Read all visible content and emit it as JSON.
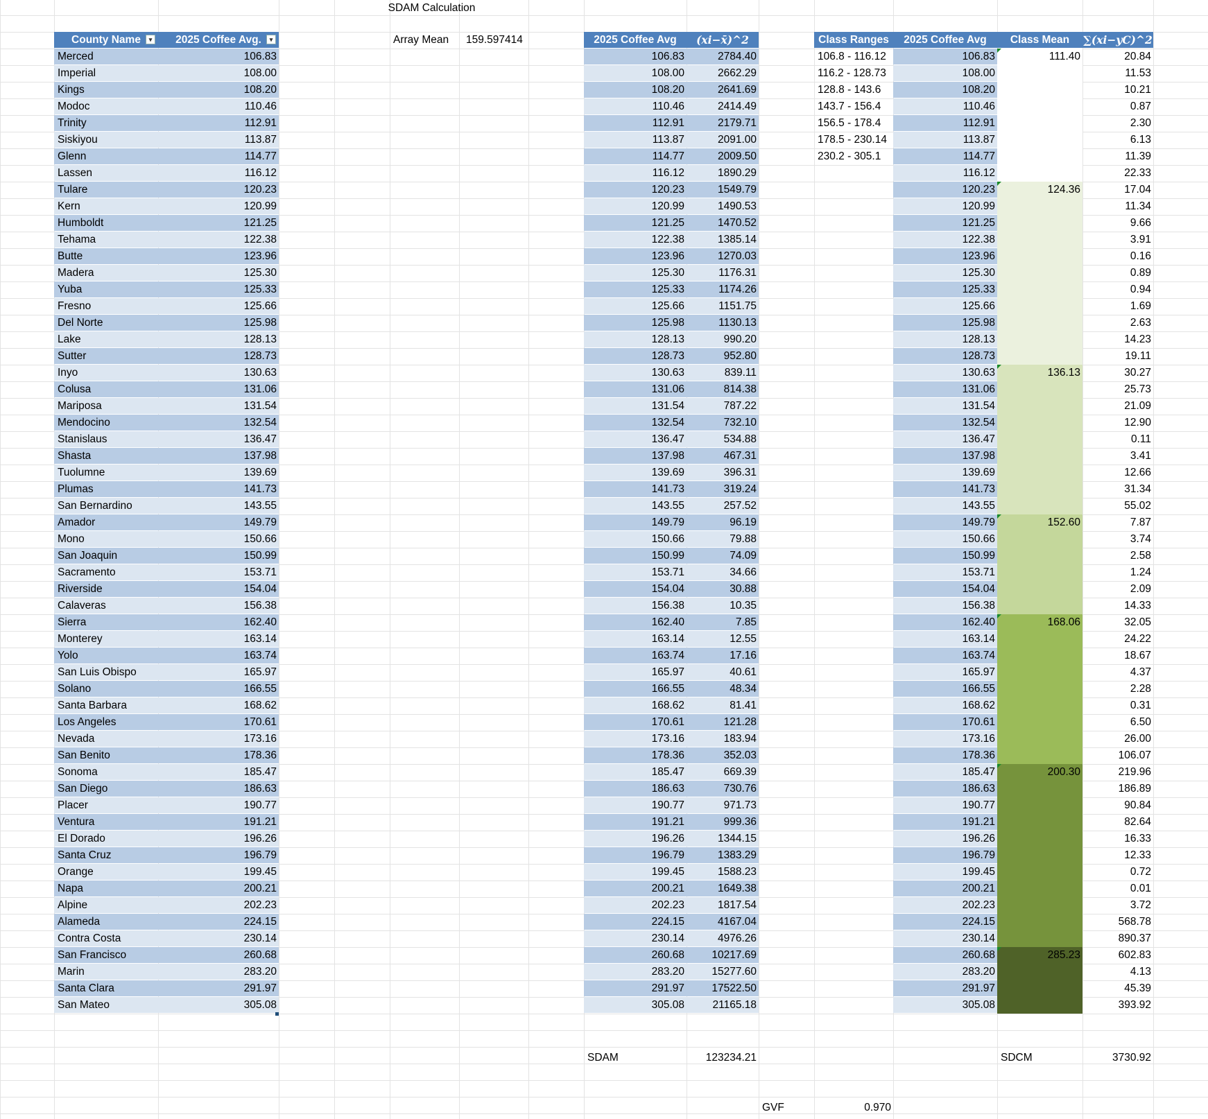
{
  "title": "SDAM Calculation",
  "array_mean": {
    "label": "Array Mean",
    "value": "159.597414"
  },
  "table1": {
    "headers": [
      "County Name",
      "2025 Coffee Avg."
    ],
    "rows": [
      [
        "Merced",
        "106.83"
      ],
      [
        "Imperial",
        "108.00"
      ],
      [
        "Kings",
        "108.20"
      ],
      [
        "Modoc",
        "110.46"
      ],
      [
        "Trinity",
        "112.91"
      ],
      [
        "Siskiyou",
        "113.87"
      ],
      [
        "Glenn",
        "114.77"
      ],
      [
        "Lassen",
        "116.12"
      ],
      [
        "Tulare",
        "120.23"
      ],
      [
        "Kern",
        "120.99"
      ],
      [
        "Humboldt",
        "121.25"
      ],
      [
        "Tehama",
        "122.38"
      ],
      [
        "Butte",
        "123.96"
      ],
      [
        "Madera",
        "125.30"
      ],
      [
        "Yuba",
        "125.33"
      ],
      [
        "Fresno",
        "125.66"
      ],
      [
        "Del Norte",
        "125.98"
      ],
      [
        "Lake",
        "128.13"
      ],
      [
        "Sutter",
        "128.73"
      ],
      [
        "Inyo",
        "130.63"
      ],
      [
        "Colusa",
        "131.06"
      ],
      [
        "Mariposa",
        "131.54"
      ],
      [
        "Mendocino",
        "132.54"
      ],
      [
        "Stanislaus",
        "136.47"
      ],
      [
        "Shasta",
        "137.98"
      ],
      [
        "Tuolumne",
        "139.69"
      ],
      [
        "Plumas",
        "141.73"
      ],
      [
        "San Bernardino",
        "143.55"
      ],
      [
        "Amador",
        "149.79"
      ],
      [
        "Mono",
        "150.66"
      ],
      [
        "San Joaquin",
        "150.99"
      ],
      [
        "Sacramento",
        "153.71"
      ],
      [
        "Riverside",
        "154.04"
      ],
      [
        "Calaveras",
        "156.38"
      ],
      [
        "Sierra",
        "162.40"
      ],
      [
        "Monterey",
        "163.14"
      ],
      [
        "Yolo",
        "163.74"
      ],
      [
        "San Luis Obispo",
        "165.97"
      ],
      [
        "Solano",
        "166.55"
      ],
      [
        "Santa Barbara",
        "168.62"
      ],
      [
        "Los Angeles",
        "170.61"
      ],
      [
        "Nevada",
        "173.16"
      ],
      [
        "San Benito",
        "178.36"
      ],
      [
        "Sonoma",
        "185.47"
      ],
      [
        "San Diego",
        "186.63"
      ],
      [
        "Placer",
        "190.77"
      ],
      [
        "Ventura",
        "191.21"
      ],
      [
        "El Dorado",
        "196.26"
      ],
      [
        "Santa Cruz",
        "196.79"
      ],
      [
        "Orange",
        "199.45"
      ],
      [
        "Napa",
        "200.21"
      ],
      [
        "Alpine",
        "202.23"
      ],
      [
        "Alameda",
        "224.15"
      ],
      [
        "Contra Costa",
        "230.14"
      ],
      [
        "San Francisco",
        "260.68"
      ],
      [
        "Marin",
        "283.20"
      ],
      [
        "Santa Clara",
        "291.97"
      ],
      [
        "San Mateo",
        "305.08"
      ]
    ]
  },
  "table2": {
    "headers": [
      "2025 Coffee Avg",
      "(xi−x̄)^2"
    ],
    "rows": [
      [
        "106.83",
        "2784.40"
      ],
      [
        "108.00",
        "2662.29"
      ],
      [
        "108.20",
        "2641.69"
      ],
      [
        "110.46",
        "2414.49"
      ],
      [
        "112.91",
        "2179.71"
      ],
      [
        "113.87",
        "2091.00"
      ],
      [
        "114.77",
        "2009.50"
      ],
      [
        "116.12",
        "1890.29"
      ],
      [
        "120.23",
        "1549.79"
      ],
      [
        "120.99",
        "1490.53"
      ],
      [
        "121.25",
        "1470.52"
      ],
      [
        "122.38",
        "1385.14"
      ],
      [
        "123.96",
        "1270.03"
      ],
      [
        "125.30",
        "1176.31"
      ],
      [
        "125.33",
        "1174.26"
      ],
      [
        "125.66",
        "1151.75"
      ],
      [
        "125.98",
        "1130.13"
      ],
      [
        "128.13",
        "990.20"
      ],
      [
        "128.73",
        "952.80"
      ],
      [
        "130.63",
        "839.11"
      ],
      [
        "131.06",
        "814.38"
      ],
      [
        "131.54",
        "787.22"
      ],
      [
        "132.54",
        "732.10"
      ],
      [
        "136.47",
        "534.88"
      ],
      [
        "137.98",
        "467.31"
      ],
      [
        "139.69",
        "396.31"
      ],
      [
        "141.73",
        "319.24"
      ],
      [
        "143.55",
        "257.52"
      ],
      [
        "149.79",
        "96.19"
      ],
      [
        "150.66",
        "79.88"
      ],
      [
        "150.99",
        "74.09"
      ],
      [
        "153.71",
        "34.66"
      ],
      [
        "154.04",
        "30.88"
      ],
      [
        "156.38",
        "10.35"
      ],
      [
        "162.40",
        "7.85"
      ],
      [
        "163.14",
        "12.55"
      ],
      [
        "163.74",
        "17.16"
      ],
      [
        "165.97",
        "40.61"
      ],
      [
        "166.55",
        "48.34"
      ],
      [
        "168.62",
        "81.41"
      ],
      [
        "170.61",
        "121.28"
      ],
      [
        "173.16",
        "183.94"
      ],
      [
        "178.36",
        "352.03"
      ],
      [
        "185.47",
        "669.39"
      ],
      [
        "186.63",
        "730.76"
      ],
      [
        "190.77",
        "971.73"
      ],
      [
        "191.21",
        "999.36"
      ],
      [
        "196.26",
        "1344.15"
      ],
      [
        "196.79",
        "1383.29"
      ],
      [
        "199.45",
        "1588.23"
      ],
      [
        "200.21",
        "1649.38"
      ],
      [
        "202.23",
        "1817.54"
      ],
      [
        "224.15",
        "4167.04"
      ],
      [
        "230.14",
        "4976.26"
      ],
      [
        "260.68",
        "10217.69"
      ],
      [
        "283.20",
        "15277.60"
      ],
      [
        "291.97",
        "17522.50"
      ],
      [
        "305.08",
        "21165.18"
      ]
    ],
    "sdam_label": "SDAM",
    "sdam_value": "123234.21"
  },
  "class_ranges": {
    "header": "Class Ranges",
    "items": [
      "106.8 - 116.12",
      "116.2 - 128.73",
      "128.8 - 143.6",
      "143.7 - 156.4",
      "156.5 - 178.4",
      "178.5 - 230.14",
      "230.2 - 305.1"
    ]
  },
  "table3": {
    "headers": [
      "2025 Coffee Avg",
      "Class Mean",
      "∑(xi−yC)^2"
    ],
    "avg": [
      "106.83",
      "108.00",
      "108.20",
      "110.46",
      "112.91",
      "113.87",
      "114.77",
      "116.12",
      "120.23",
      "120.99",
      "121.25",
      "122.38",
      "123.96",
      "125.30",
      "125.33",
      "125.66",
      "125.98",
      "128.13",
      "128.73",
      "130.63",
      "131.06",
      "131.54",
      "132.54",
      "136.47",
      "137.98",
      "139.69",
      "141.73",
      "143.55",
      "149.79",
      "150.66",
      "150.99",
      "153.71",
      "154.04",
      "156.38",
      "162.40",
      "163.14",
      "163.74",
      "165.97",
      "166.55",
      "168.62",
      "170.61",
      "173.16",
      "178.36",
      "185.47",
      "186.63",
      "190.77",
      "191.21",
      "196.26",
      "196.79",
      "199.45",
      "200.21",
      "202.23",
      "224.15",
      "230.14",
      "260.68",
      "283.20",
      "291.97",
      "305.08"
    ],
    "sq": [
      "20.84",
      "11.53",
      "10.21",
      "0.87",
      "2.30",
      "6.13",
      "11.39",
      "22.33",
      "17.04",
      "11.34",
      "9.66",
      "3.91",
      "0.16",
      "0.89",
      "0.94",
      "1.69",
      "2.63",
      "14.23",
      "19.11",
      "30.27",
      "25.73",
      "21.09",
      "12.90",
      "0.11",
      "3.41",
      "12.66",
      "31.34",
      "55.02",
      "7.87",
      "3.74",
      "2.58",
      "1.24",
      "2.09",
      "14.33",
      "32.05",
      "24.22",
      "18.67",
      "4.37",
      "2.28",
      "0.31",
      "6.50",
      "26.00",
      "106.07",
      "219.96",
      "186.89",
      "90.84",
      "82.64",
      "16.33",
      "12.33",
      "0.72",
      "0.01",
      "3.72",
      "568.78",
      "890.37",
      "602.83",
      "4.13",
      "45.39",
      "393.92"
    ],
    "classes": [
      {
        "mean": "111.40",
        "count": 8,
        "color": "#ffffff"
      },
      {
        "mean": "124.36",
        "count": 11,
        "color": "#ebf1de"
      },
      {
        "mean": "136.13",
        "count": 9,
        "color": "#d8e4bc"
      },
      {
        "mean": "152.60",
        "count": 6,
        "color": "#c4d79b"
      },
      {
        "mean": "168.06",
        "count": 9,
        "color": "#9bbb59"
      },
      {
        "mean": "200.30",
        "count": 11,
        "color": "#76933c"
      },
      {
        "mean": "285.23",
        "count": 4,
        "color": "#4f6228"
      }
    ],
    "sdcm_label": "SDCM",
    "sdcm_value": "3730.92"
  },
  "gvf": {
    "label": "GVF",
    "value": "0.970"
  }
}
